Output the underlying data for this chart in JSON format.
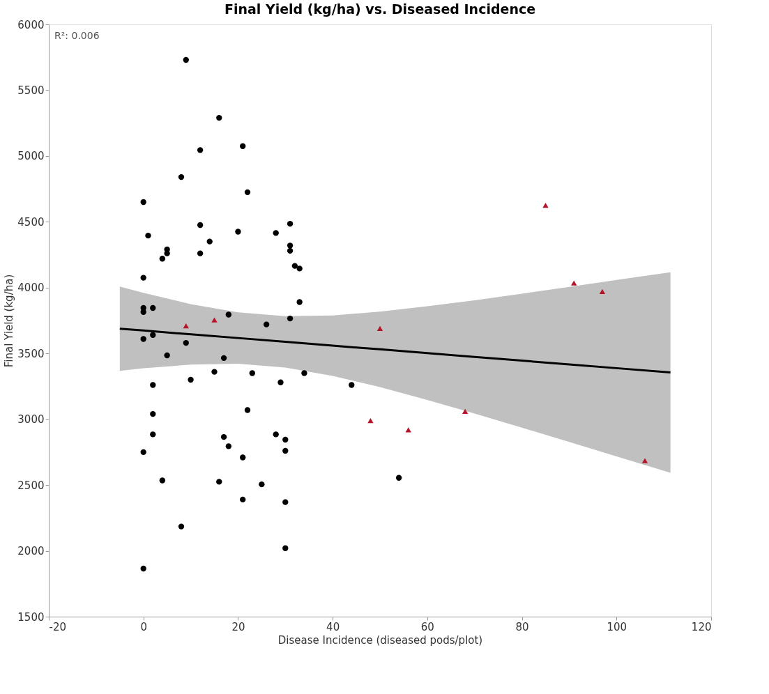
{
  "chart_data": {
    "type": "scatter",
    "title": "Final Yield (kg/ha) vs. Diseased Incidence",
    "xlabel": "Disease Incidence (diseased pods/plot)",
    "ylabel": "Final Yield (kg/ha)",
    "annotations": [
      "R²: 0.006"
    ],
    "xlim": [
      -20,
      120
    ],
    "xticks": [
      -20,
      0,
      20,
      40,
      60,
      80,
      100,
      120
    ],
    "ylim": [
      1500,
      6000
    ],
    "yticks": [
      1500,
      2000,
      2500,
      3000,
      3500,
      4000,
      4500,
      5000,
      5500,
      6000
    ],
    "grid": false,
    "series": [
      {
        "marker": "circle",
        "color": "#000000",
        "x": [
          9,
          16,
          21,
          12,
          22,
          0,
          8,
          1,
          12,
          14,
          20,
          31,
          28,
          5,
          5,
          4,
          12,
          31,
          31,
          32,
          33,
          0,
          33,
          0,
          0,
          2,
          18,
          26,
          31,
          2,
          0,
          9,
          5,
          17,
          15,
          34,
          23,
          10,
          29,
          2,
          44,
          22,
          2,
          2,
          17,
          28,
          30,
          18,
          30,
          0,
          21,
          54,
          4,
          16,
          25,
          21,
          30,
          8,
          30,
          0
        ],
        "values": [
          5730,
          5290,
          5075,
          5045,
          4725,
          4650,
          4840,
          4395,
          4475,
          4350,
          4425,
          4485,
          4415,
          4290,
          4260,
          4220,
          4260,
          4320,
          4280,
          4165,
          4145,
          4075,
          3890,
          3845,
          3815,
          3845,
          3795,
          3720,
          3765,
          3640,
          3610,
          3580,
          3485,
          3465,
          3360,
          3350,
          3350,
          3300,
          3280,
          3260,
          3260,
          3070,
          3040,
          2885,
          2865,
          2885,
          2845,
          2795,
          2760,
          2750,
          2710,
          2555,
          2535,
          2525,
          2505,
          2390,
          2370,
          2185,
          2020,
          1865
        ]
      },
      {
        "marker": "triangle",
        "color": "#b5152b",
        "x": [
          9,
          15,
          50,
          48,
          56,
          68,
          85,
          91,
          97,
          106
        ],
        "values": [
          3710,
          3755,
          3690,
          2990,
          2920,
          3060,
          4625,
          4035,
          3970,
          2685
        ]
      },
      {
        "type": "line",
        "color": "#000000",
        "x": [
          -5,
          0,
          10,
          20,
          30,
          40,
          50,
          60,
          70,
          80,
          90,
          100,
          111.4
        ],
        "values": [
          3688,
          3674,
          3645,
          3617,
          3588,
          3559,
          3531,
          3502,
          3473,
          3445,
          3416,
          3388,
          3355
        ],
        "lower": [
          3368,
          3387,
          3415,
          3422,
          3393,
          3329,
          3244,
          3146,
          3043,
          2936,
          2827,
          2717,
          2593
        ],
        "upper": [
          4008,
          3961,
          3875,
          3812,
          3783,
          3789,
          3818,
          3858,
          3903,
          3954,
          4005,
          4059,
          4117
        ]
      }
    ]
  }
}
